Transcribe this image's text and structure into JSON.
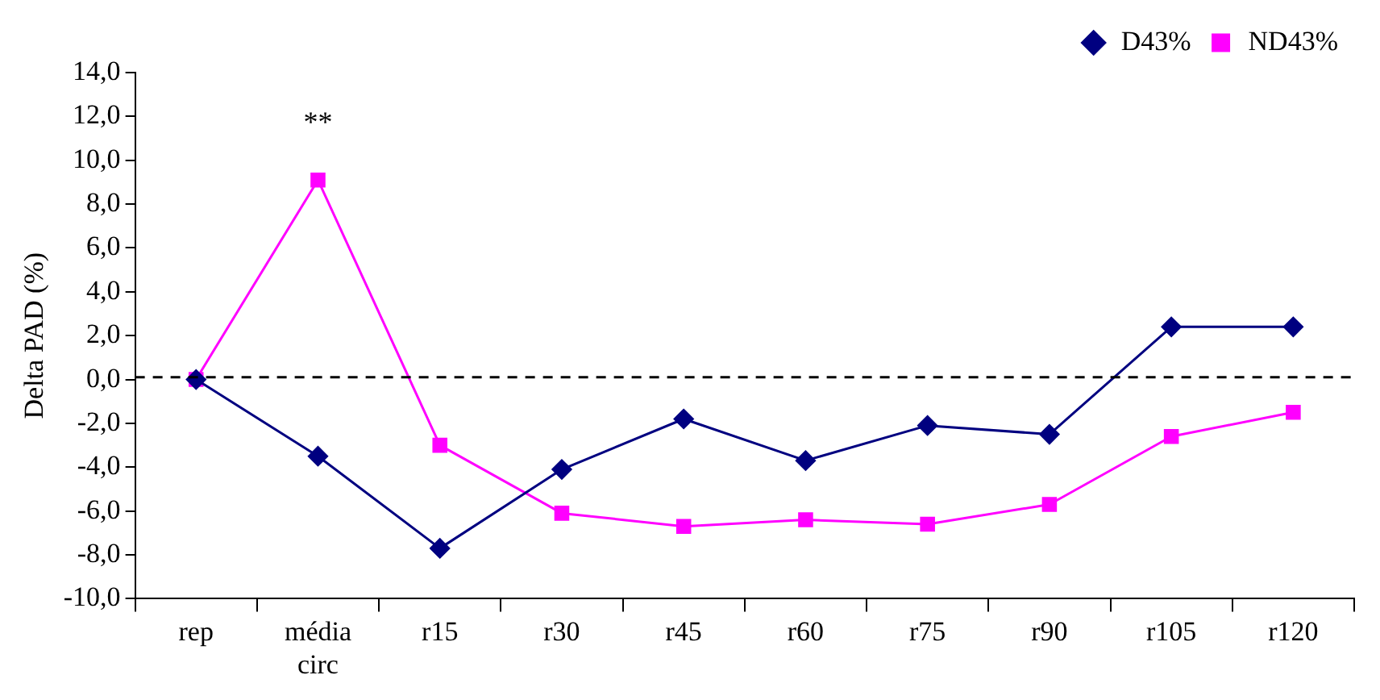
{
  "chart_data": {
    "type": "line",
    "ylabel": "Delta PAD (%)",
    "categories": [
      "rep",
      "média\ncirc",
      "r15",
      "r30",
      "r45",
      "r60",
      "r75",
      "r90",
      "r105",
      "r120"
    ],
    "series": [
      {
        "name": "D43%",
        "color": "#000080",
        "marker": "diamond",
        "values": [
          0,
          -3.5,
          -7.7,
          -4.1,
          -1.8,
          -3.7,
          -2.1,
          -2.5,
          2.4,
          2.4
        ]
      },
      {
        "name": "ND43%",
        "color": "#ff00ff",
        "marker": "square",
        "values": [
          0,
          9.1,
          -3.0,
          -6.1,
          -6.7,
          -6.4,
          -6.6,
          -5.7,
          -2.6,
          -1.5
        ]
      }
    ],
    "ylim": [
      -10,
      14
    ],
    "yticks": [
      {
        "value": -10,
        "label": "-10,0"
      },
      {
        "value": -8,
        "label": "-8,0"
      },
      {
        "value": -6,
        "label": "-6,0"
      },
      {
        "value": -4,
        "label": "-4,0"
      },
      {
        "value": -2,
        "label": "-2,0"
      },
      {
        "value": 0,
        "label": "0,0"
      },
      {
        "value": 2,
        "label": "2,0"
      },
      {
        "value": 4,
        "label": "4,0"
      },
      {
        "value": 6,
        "label": "6,0"
      },
      {
        "value": 8,
        "label": "8,0"
      },
      {
        "value": 10,
        "label": "10,0"
      },
      {
        "value": 12,
        "label": "12,0"
      },
      {
        "value": 14,
        "label": "14,0"
      }
    ],
    "ref_lines": [
      {
        "axis": "y",
        "value": 0.1,
        "color": "#000000",
        "line_style": "dashed"
      }
    ],
    "annotations": [
      "**"
    ],
    "grid": false,
    "legend": "top right",
    "line_style": "solid"
  }
}
